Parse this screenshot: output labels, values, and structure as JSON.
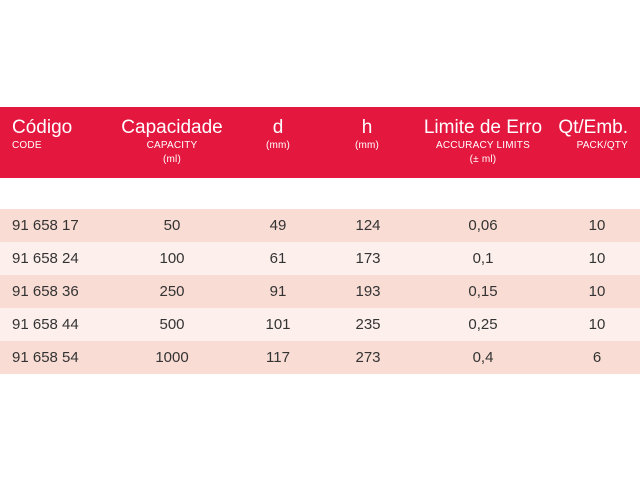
{
  "header": {
    "code": {
      "main": "Código",
      "sub": "CODE"
    },
    "capacity": {
      "main": "Capacidade",
      "sub1": "CAPACITY",
      "sub2": "(ml)"
    },
    "d": {
      "main": "d",
      "sub": "(mm)"
    },
    "h": {
      "main": "h",
      "sub": "(mm)"
    },
    "limit": {
      "main": "Limite de Erro",
      "sub1": "ACCURACY LIMITS",
      "sub2": "(± ml)"
    },
    "qty": {
      "main": "Qt/Emb.",
      "sub": "PACK/QTY"
    }
  },
  "rows": [
    {
      "code": "91 658 17",
      "capacity": "50",
      "d": "49",
      "h": "124",
      "limit": "0,06",
      "qty": "10"
    },
    {
      "code": "91 658 24",
      "capacity": "100",
      "d": "61",
      "h": "173",
      "limit": "0,1",
      "qty": "10"
    },
    {
      "code": "91 658 36",
      "capacity": "250",
      "d": "91",
      "h": "193",
      "limit": "0,15",
      "qty": "10"
    },
    {
      "code": "91 658 44",
      "capacity": "500",
      "d": "101",
      "h": "235",
      "limit": "0,25",
      "qty": "10"
    },
    {
      "code": "91 658 54",
      "capacity": "1000",
      "d": "117",
      "h": "273",
      "limit": "0,4",
      "qty": "6"
    }
  ],
  "colors": {
    "header_bg": "#e4173f",
    "row_odd": "#f9dcd3",
    "row_even": "#fdf0ec"
  }
}
